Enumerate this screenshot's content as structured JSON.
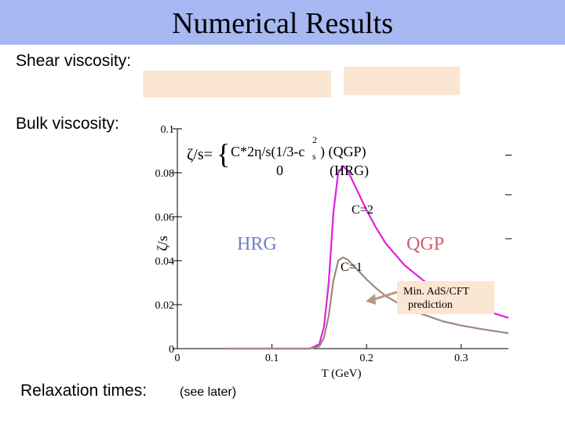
{
  "slide": {
    "title": "Numerical Results",
    "shear_label": "Shear viscosity:",
    "bulk_label": "Bulk viscosity:",
    "relaxation_label": "Relaxation times:",
    "relaxation_note": "(see later)"
  },
  "chart_data": {
    "type": "line",
    "ylabel": "ζ/s",
    "xlabel": "T (GeV)",
    "xlim": [
      0,
      0.35
    ],
    "ylim": [
      0,
      0.1
    ],
    "x_ticks": [
      "0",
      "0.1",
      "0.2",
      "0.3"
    ],
    "y_ticks": [
      "0",
      "0.02",
      "0.04",
      "0.06",
      "0.08",
      "0.1"
    ],
    "formula": {
      "lhs": "ζ/s=",
      "qgp_expr": "C*2η/s(1/3-c",
      "qgp_sub": "s",
      "qgp_sup": "2",
      "qgp_tail": ") (QGP)",
      "hrg_expr": "0",
      "hrg_tail": "(HRG)"
    },
    "annotations": {
      "hrg": "HRG",
      "qgp": "QGP",
      "c2": "C=2",
      "c1": "C=1",
      "min_ads_1": "Min. AdS/CFT",
      "min_ads_2": "prediction"
    },
    "series": [
      {
        "name": "C=2",
        "color": "#e020e0",
        "x": [
          0.05,
          0.14,
          0.15,
          0.155,
          0.16,
          0.165,
          0.17,
          0.175,
          0.18,
          0.19,
          0.2,
          0.21,
          0.22,
          0.24,
          0.26,
          0.28,
          0.3,
          0.32,
          0.35
        ],
        "y": [
          0.0,
          0.0,
          0.002,
          0.01,
          0.03,
          0.062,
          0.08,
          0.083,
          0.081,
          0.072,
          0.063,
          0.055,
          0.048,
          0.038,
          0.031,
          0.025,
          0.021,
          0.018,
          0.014
        ]
      },
      {
        "name": "C=1",
        "color": "#a08880",
        "x": [
          0.05,
          0.14,
          0.15,
          0.155,
          0.16,
          0.165,
          0.17,
          0.175,
          0.18,
          0.19,
          0.2,
          0.21,
          0.22,
          0.24,
          0.26,
          0.28,
          0.3,
          0.32,
          0.35
        ],
        "y": [
          0.0,
          0.0,
          0.001,
          0.005,
          0.015,
          0.031,
          0.04,
          0.0415,
          0.0405,
          0.036,
          0.0315,
          0.0275,
          0.024,
          0.019,
          0.0155,
          0.0125,
          0.0105,
          0.009,
          0.007
        ]
      }
    ]
  }
}
